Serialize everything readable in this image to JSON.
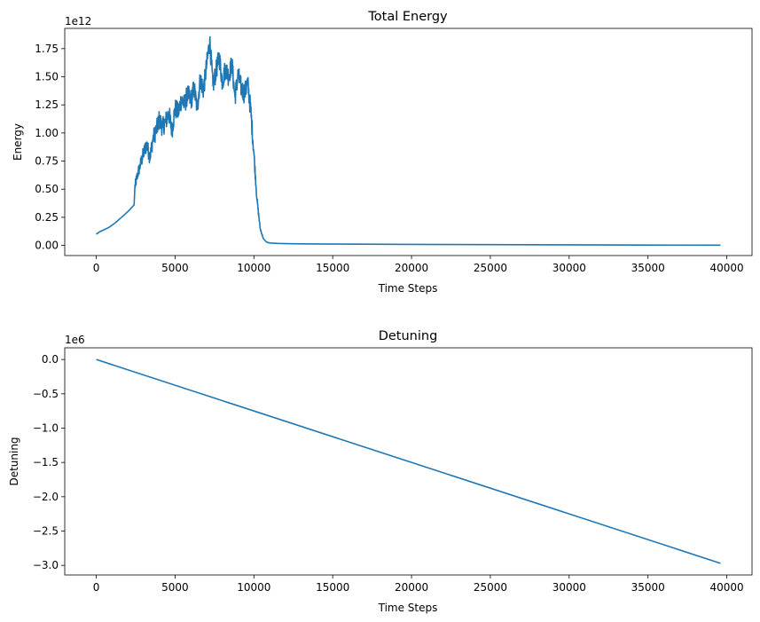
{
  "chart_data": [
    {
      "id": "energy",
      "type": "line",
      "title": "Total Energy",
      "xlabel": "Time Steps",
      "ylabel": "Energy",
      "offset_text": "1e12",
      "xlim": [
        -2000,
        41600
      ],
      "ylim": [
        -0.09,
        1.93
      ],
      "xticks": [
        0,
        5000,
        10000,
        15000,
        20000,
        25000,
        30000,
        35000,
        40000
      ],
      "xtick_labels": [
        "0",
        "5000",
        "10000",
        "15000",
        "20000",
        "25000",
        "30000",
        "35000",
        "40000"
      ],
      "yticks": [
        0.0,
        0.25,
        0.5,
        0.75,
        1.0,
        1.25,
        1.5,
        1.75
      ],
      "ytick_labels": [
        "0.00",
        "0.25",
        "0.50",
        "0.75",
        "1.00",
        "1.25",
        "1.50",
        "1.75"
      ],
      "grid": false,
      "series": [
        {
          "color": "#1f77b4",
          "x": [
            0,
            200,
            500,
            800,
            1200,
            1600,
            2000,
            2400,
            2450,
            2600,
            2800,
            3000,
            3200,
            3400,
            3600,
            3800,
            4000,
            4200,
            4400,
            4600,
            4800,
            5000,
            5200,
            5400,
            5600,
            5800,
            6000,
            6200,
            6400,
            6600,
            6800,
            7000,
            7200,
            7400,
            7600,
            7800,
            8000,
            8200,
            8400,
            8600,
            8800,
            9000,
            9200,
            9400,
            9600,
            9800,
            10000,
            10200,
            10400,
            10600,
            10800,
            11000,
            11500,
            12000,
            13000,
            15000,
            20000,
            25000,
            30000,
            35000,
            39600
          ],
          "y": [
            0.1,
            0.12,
            0.14,
            0.16,
            0.2,
            0.25,
            0.3,
            0.36,
            0.52,
            0.62,
            0.72,
            0.82,
            0.9,
            0.78,
            0.95,
            1.02,
            1.12,
            1.05,
            1.1,
            1.18,
            1.02,
            1.22,
            1.18,
            1.3,
            1.25,
            1.35,
            1.28,
            1.4,
            1.22,
            1.48,
            1.38,
            1.6,
            1.82,
            1.42,
            1.55,
            1.68,
            1.45,
            1.58,
            1.5,
            1.62,
            1.32,
            1.52,
            1.4,
            1.35,
            1.45,
            1.2,
            0.82,
            0.4,
            0.15,
            0.06,
            0.03,
            0.022,
            0.018,
            0.016,
            0.014,
            0.012,
            0.009,
            0.007,
            0.005,
            0.003,
            0.002
          ]
        }
      ]
    },
    {
      "id": "detuning",
      "type": "line",
      "title": "Detuning",
      "xlabel": "Time Steps",
      "ylabel": "Detuning",
      "offset_text": "1e6",
      "xlim": [
        -2000,
        41600
      ],
      "ylim": [
        -3.14,
        0.17
      ],
      "xticks": [
        0,
        5000,
        10000,
        15000,
        20000,
        25000,
        30000,
        35000,
        40000
      ],
      "xtick_labels": [
        "0",
        "5000",
        "10000",
        "15000",
        "20000",
        "25000",
        "30000",
        "35000",
        "40000"
      ],
      "yticks": [
        0.0,
        -0.5,
        -1.0,
        -1.5,
        -2.0,
        -2.5,
        -3.0
      ],
      "ytick_labels": [
        "0.0",
        "−0.5",
        "−1.0",
        "−1.5",
        "−2.0",
        "−2.5",
        "−3.0"
      ],
      "grid": false,
      "series": [
        {
          "color": "#1f77b4",
          "x": [
            0,
            39600
          ],
          "y": [
            0.0,
            -2.97
          ]
        }
      ]
    }
  ]
}
